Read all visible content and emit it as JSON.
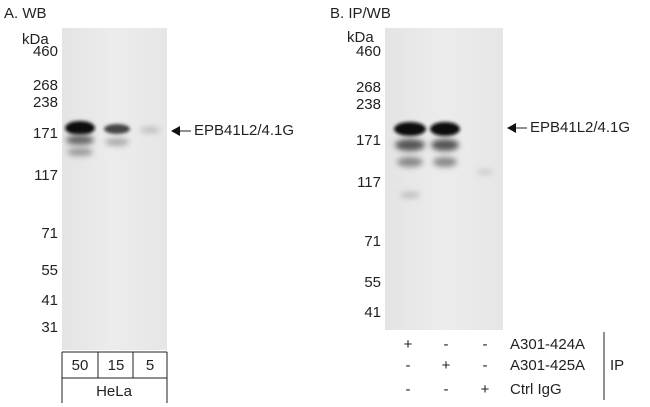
{
  "panels": [
    {
      "label": "A. WB",
      "unit": "kDa",
      "markers": [
        "460",
        "268",
        "238",
        "171",
        "117",
        "71",
        "55",
        "41",
        "31"
      ],
      "target": "EPB41L2/4.1G",
      "lanes": [
        "50",
        "15",
        "5"
      ],
      "sample": "HeLa"
    },
    {
      "label": "B. IP/WB",
      "unit": "kDa",
      "markers": [
        "460",
        "268",
        "238",
        "171",
        "117",
        "71",
        "55",
        "41"
      ],
      "target": "EPB41L2/4.1G",
      "rows": [
        {
          "name": "A301-424A",
          "marks": [
            "+",
            "-",
            "-"
          ]
        },
        {
          "name": "A301-425A",
          "marks": [
            "-",
            "+",
            "-"
          ]
        },
        {
          "name": "Ctrl IgG",
          "marks": [
            "-",
            "-",
            "+"
          ]
        }
      ],
      "group": "IP"
    }
  ]
}
